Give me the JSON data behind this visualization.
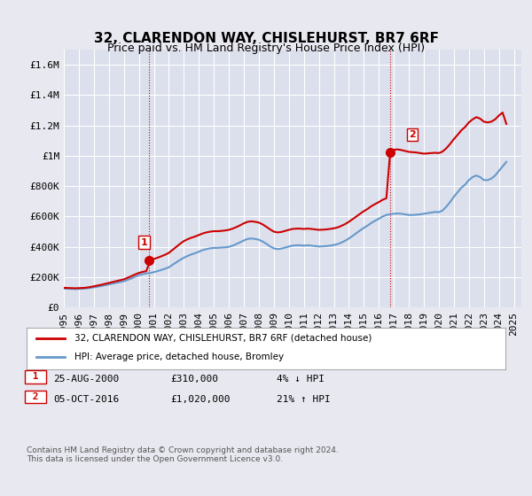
{
  "title": "32, CLARENDON WAY, CHISLEHURST, BR7 6RF",
  "subtitle": "Price paid vs. HM Land Registry's House Price Index (HPI)",
  "ylabel": "",
  "xlabel": "",
  "background_color": "#e8e8f0",
  "plot_bg_color": "#dce0ec",
  "grid_color": "#ffffff",
  "ylim": [
    0,
    1700000
  ],
  "xlim_start": 1995.0,
  "xlim_end": 2025.5,
  "yticks": [
    0,
    200000,
    400000,
    600000,
    800000,
    1000000,
    1200000,
    1400000,
    1600000
  ],
  "ytick_labels": [
    "£0",
    "£200K",
    "£400K",
    "£600K",
    "£800K",
    "£1M",
    "£1.2M",
    "£1.4M",
    "£1.6M"
  ],
  "sale1_x": 2000.65,
  "sale1_y": 310000,
  "sale1_label": "1",
  "sale2_x": 2016.75,
  "sale2_y": 1020000,
  "sale2_label": "2",
  "red_line_color": "#cc0000",
  "blue_line_color": "#6699cc",
  "marker_color": "#cc0000",
  "legend_label_red": "32, CLARENDON WAY, CHISLEHURST, BR7 6RF (detached house)",
  "legend_label_blue": "HPI: Average price, detached house, Bromley",
  "table_row1": [
    "1",
    "25-AUG-2000",
    "£310,000",
    "4% ↓ HPI"
  ],
  "table_row2": [
    "2",
    "05-OCT-2016",
    "£1,020,000",
    "21% ↑ HPI"
  ],
  "footnote": "Contains HM Land Registry data © Crown copyright and database right 2024.\nThis data is licensed under the Open Government Licence v3.0.",
  "title_fontsize": 11,
  "subtitle_fontsize": 9,
  "tick_fontsize": 8,
  "hpi_data_x": [
    1995.0,
    1995.25,
    1995.5,
    1995.75,
    1996.0,
    1996.25,
    1996.5,
    1996.75,
    1997.0,
    1997.25,
    1997.5,
    1997.75,
    1998.0,
    1998.25,
    1998.5,
    1998.75,
    1999.0,
    1999.25,
    1999.5,
    1999.75,
    2000.0,
    2000.25,
    2000.5,
    2000.75,
    2001.0,
    2001.25,
    2001.5,
    2001.75,
    2002.0,
    2002.25,
    2002.5,
    2002.75,
    2003.0,
    2003.25,
    2003.5,
    2003.75,
    2004.0,
    2004.25,
    2004.5,
    2004.75,
    2005.0,
    2005.25,
    2005.5,
    2005.75,
    2006.0,
    2006.25,
    2006.5,
    2006.75,
    2007.0,
    2007.25,
    2007.5,
    2007.75,
    2008.0,
    2008.25,
    2008.5,
    2008.75,
    2009.0,
    2009.25,
    2009.5,
    2009.75,
    2010.0,
    2010.25,
    2010.5,
    2010.75,
    2011.0,
    2011.25,
    2011.5,
    2011.75,
    2012.0,
    2012.25,
    2012.5,
    2012.75,
    2013.0,
    2013.25,
    2013.5,
    2013.75,
    2014.0,
    2014.25,
    2014.5,
    2014.75,
    2015.0,
    2015.25,
    2015.5,
    2015.75,
    2016.0,
    2016.25,
    2016.5,
    2016.75,
    2017.0,
    2017.25,
    2017.5,
    2017.75,
    2018.0,
    2018.25,
    2018.5,
    2018.75,
    2019.0,
    2019.25,
    2019.5,
    2019.75,
    2020.0,
    2020.25,
    2020.5,
    2020.75,
    2021.0,
    2021.25,
    2021.5,
    2021.75,
    2022.0,
    2022.25,
    2022.5,
    2022.75,
    2023.0,
    2023.25,
    2023.5,
    2023.75,
    2024.0,
    2024.25,
    2024.5
  ],
  "hpi_data_y": [
    125000,
    124000,
    123000,
    122000,
    123000,
    124000,
    126000,
    129000,
    133000,
    137000,
    142000,
    147000,
    152000,
    158000,
    163000,
    168000,
    173000,
    182000,
    192000,
    203000,
    213000,
    220000,
    225000,
    228000,
    233000,
    240000,
    248000,
    256000,
    265000,
    282000,
    298000,
    314000,
    328000,
    340000,
    350000,
    358000,
    368000,
    378000,
    385000,
    390000,
    393000,
    393000,
    395000,
    397000,
    400000,
    408000,
    418000,
    430000,
    442000,
    452000,
    455000,
    452000,
    447000,
    435000,
    420000,
    403000,
    390000,
    385000,
    388000,
    395000,
    402000,
    408000,
    410000,
    410000,
    408000,
    410000,
    408000,
    405000,
    402000,
    403000,
    405000,
    408000,
    412000,
    418000,
    428000,
    440000,
    455000,
    472000,
    490000,
    508000,
    525000,
    540000,
    558000,
    572000,
    585000,
    600000,
    610000,
    615000,
    618000,
    620000,
    618000,
    614000,
    610000,
    610000,
    612000,
    614000,
    618000,
    622000,
    626000,
    630000,
    628000,
    640000,
    665000,
    695000,
    730000,
    760000,
    790000,
    810000,
    840000,
    860000,
    870000,
    860000,
    840000,
    840000,
    850000,
    870000,
    900000,
    930000,
    960000
  ],
  "price_data_x": [
    1995.0,
    1995.25,
    1995.5,
    1995.75,
    1996.0,
    1996.25,
    1996.5,
    1996.75,
    1997.0,
    1997.25,
    1997.5,
    1997.75,
    1998.0,
    1998.25,
    1998.5,
    1998.75,
    1999.0,
    1999.25,
    1999.5,
    1999.75,
    2000.0,
    2000.25,
    2000.5,
    2000.75,
    2001.0,
    2001.25,
    2001.5,
    2001.75,
    2002.0,
    2002.25,
    2002.5,
    2002.75,
    2003.0,
    2003.25,
    2003.5,
    2003.75,
    2004.0,
    2004.25,
    2004.5,
    2004.75,
    2005.0,
    2005.25,
    2005.5,
    2005.75,
    2006.0,
    2006.25,
    2006.5,
    2006.75,
    2007.0,
    2007.25,
    2007.5,
    2007.75,
    2008.0,
    2008.25,
    2008.5,
    2008.75,
    2009.0,
    2009.25,
    2009.5,
    2009.75,
    2010.0,
    2010.25,
    2010.5,
    2010.75,
    2011.0,
    2011.25,
    2011.5,
    2011.75,
    2012.0,
    2012.25,
    2012.5,
    2012.75,
    2013.0,
    2013.25,
    2013.5,
    2013.75,
    2014.0,
    2014.25,
    2014.5,
    2014.75,
    2015.0,
    2015.25,
    2015.5,
    2015.75,
    2016.0,
    2016.25,
    2016.5,
    2016.75,
    2017.0,
    2017.25,
    2017.5,
    2017.75,
    2018.0,
    2018.25,
    2018.5,
    2018.75,
    2019.0,
    2019.25,
    2019.5,
    2019.75,
    2020.0,
    2020.25,
    2020.5,
    2020.75,
    2021.0,
    2021.25,
    2021.5,
    2021.75,
    2022.0,
    2022.25,
    2022.5,
    2022.75,
    2023.0,
    2023.25,
    2023.5,
    2023.75,
    2024.0,
    2024.25,
    2024.5
  ],
  "price_data_y": [
    130000,
    129000,
    128000,
    127000,
    128000,
    129000,
    131000,
    135000,
    140000,
    145000,
    150000,
    156000,
    162000,
    168000,
    174000,
    180000,
    186000,
    196000,
    207000,
    218000,
    228000,
    235000,
    240000,
    310000,
    320000,
    328000,
    338000,
    348000,
    360000,
    380000,
    400000,
    420000,
    438000,
    450000,
    460000,
    468000,
    478000,
    488000,
    495000,
    500000,
    503000,
    503000,
    505000,
    508000,
    512000,
    520000,
    530000,
    542000,
    555000,
    565000,
    568000,
    565000,
    560000,
    548000,
    532000,
    515000,
    500000,
    495000,
    498000,
    505000,
    512000,
    518000,
    520000,
    520000,
    518000,
    520000,
    518000,
    515000,
    512000,
    513000,
    515000,
    518000,
    522000,
    528000,
    538000,
    550000,
    565000,
    582000,
    600000,
    618000,
    635000,
    650000,
    668000,
    682000,
    695000,
    710000,
    720000,
    1020000,
    1040000,
    1042000,
    1038000,
    1032000,
    1026000,
    1024000,
    1022000,
    1018000,
    1014000,
    1016000,
    1018000,
    1020000,
    1018000,
    1028000,
    1050000,
    1078000,
    1110000,
    1138000,
    1168000,
    1190000,
    1220000,
    1240000,
    1255000,
    1245000,
    1225000,
    1220000,
    1225000,
    1240000,
    1265000,
    1285000,
    1210000
  ]
}
